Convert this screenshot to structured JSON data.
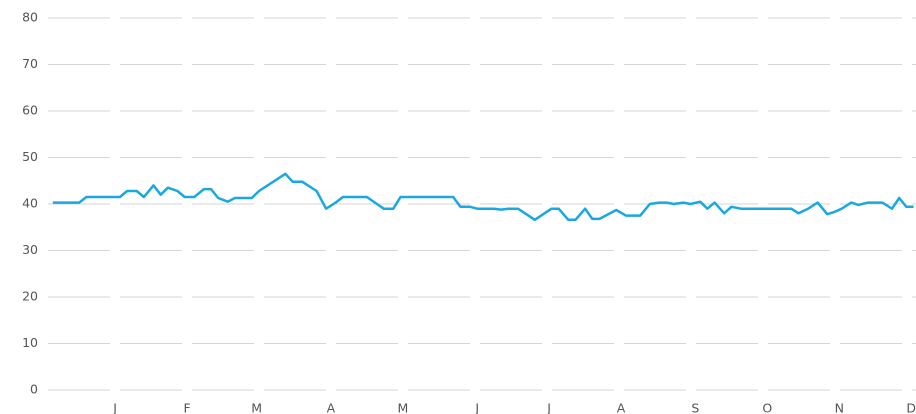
{
  "chart_data": {
    "type": "line",
    "x": [
      2,
      13,
      16,
      30,
      33,
      37,
      40,
      44,
      47,
      50,
      54,
      57,
      61,
      65,
      68,
      71,
      75,
      78,
      85,
      88,
      99,
      102,
      106,
      112,
      116,
      120,
      123,
      133,
      140,
      144,
      147,
      169,
      172,
      176,
      179,
      186,
      189,
      192,
      196,
      203,
      210,
      213,
      217,
      220,
      224,
      227,
      230,
      237,
      241,
      247,
      251,
      255,
      258,
      261,
      265,
      268,
      272,
      275,
      278,
      282,
      285,
      289,
      310,
      313,
      317,
      321,
      325,
      328,
      331,
      335,
      338,
      342,
      348,
      352,
      355,
      358,
      361
    ],
    "series": [
      {
        "color": "#1ba8e0",
        "values": [
          40.3,
          40.3,
          41.5,
          41.5,
          42.8,
          42.8,
          41.5,
          44,
          42,
          43.5,
          42.8,
          41.5,
          41.5,
          43.2,
          43.2,
          41.3,
          40.5,
          41.3,
          41.3,
          42.8,
          46.5,
          44.8,
          44.8,
          42.8,
          39,
          40.3,
          41.5,
          41.5,
          39,
          39,
          41.5,
          41.5,
          39.4,
          39.4,
          39,
          39,
          38.8,
          39,
          39,
          36.6,
          39,
          39,
          36.6,
          36.6,
          39,
          36.8,
          36.8,
          38.7,
          37.5,
          37.5,
          40,
          40.3,
          40.3,
          40,
          40.3,
          40,
          40.5,
          39,
          40.3,
          38,
          39.4,
          39,
          39,
          38,
          39,
          40.3,
          37.8,
          38.3,
          39,
          40.3,
          39.8,
          40.3,
          40.3,
          39,
          41.3,
          39.4,
          39.4
        ]
      }
    ],
    "xlim": [
      0,
      362
    ],
    "xticks": [
      {
        "value": 28,
        "label": "J"
      },
      {
        "value": 58,
        "label": "F"
      },
      {
        "value": 87,
        "label": "M"
      },
      {
        "value": 118,
        "label": "A"
      },
      {
        "value": 148,
        "label": "M"
      },
      {
        "value": 179,
        "label": "J"
      },
      {
        "value": 209,
        "label": "J"
      },
      {
        "value": 239,
        "label": "A"
      },
      {
        "value": 270,
        "label": "S"
      },
      {
        "value": 300,
        "label": "O"
      },
      {
        "value": 330,
        "label": "N"
      },
      {
        "value": 360,
        "label": "D"
      }
    ],
    "ylim": [
      0,
      80
    ],
    "yticks": [
      0,
      10,
      20,
      30,
      40,
      50,
      60,
      70,
      80
    ],
    "grid": true
  }
}
